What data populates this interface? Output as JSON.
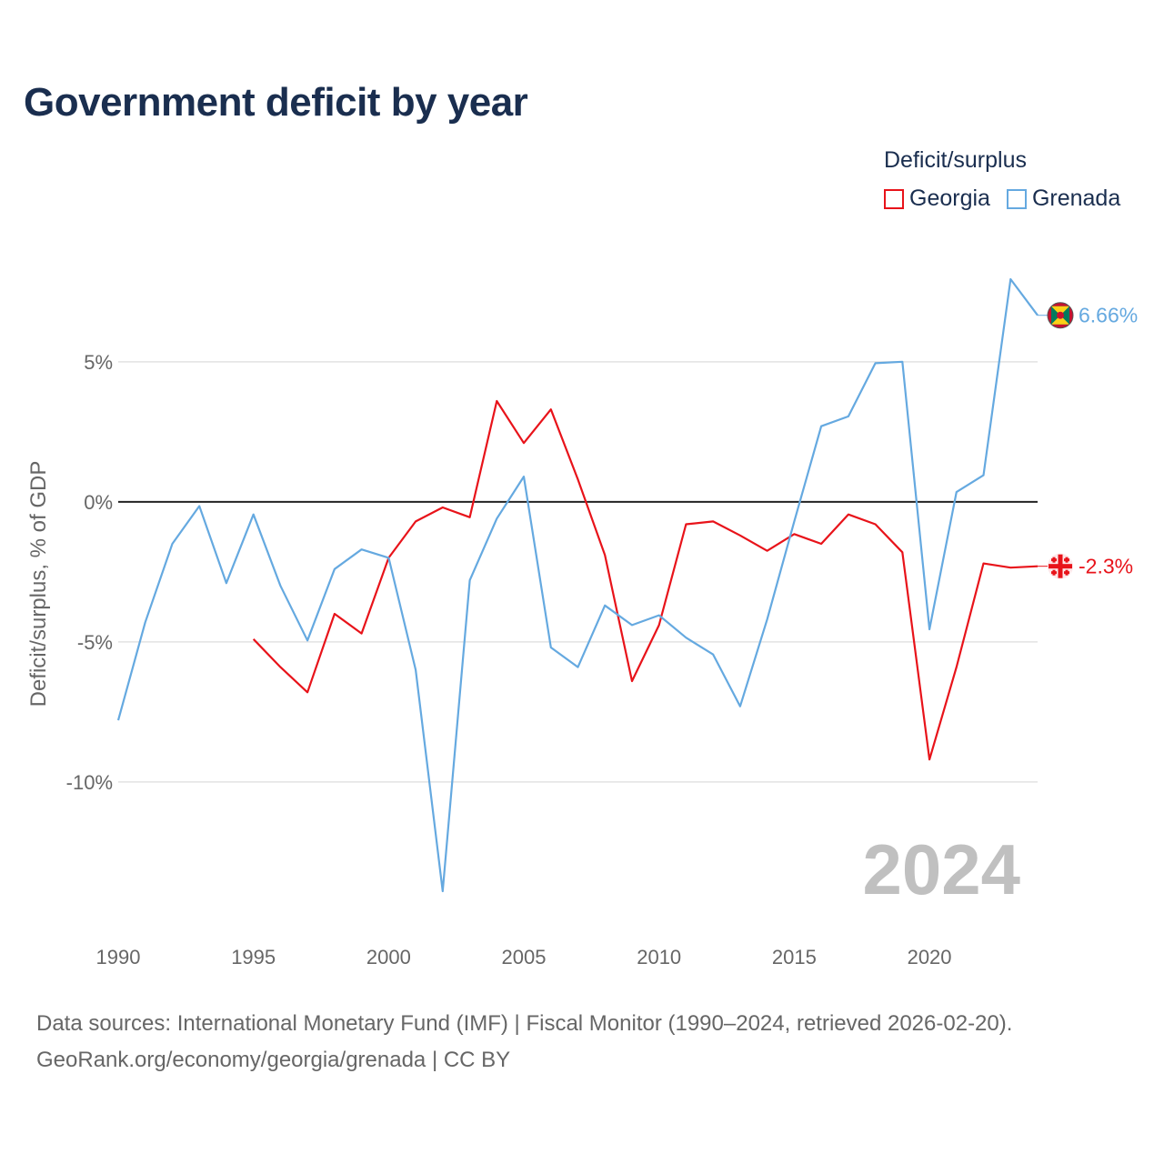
{
  "title": "Government deficit by year",
  "legend": {
    "title": "Deficit/surplus",
    "items": [
      {
        "name": "Georgia",
        "color": "#e8131a"
      },
      {
        "name": "Grenada",
        "color": "#65a9e0"
      }
    ]
  },
  "sources": {
    "line1": "Data sources: International Monetary Fund (IMF) | Fiscal Monitor (1990–2024, retrieved 2026-02-20).",
    "line2": "GeoRank.org/economy/georgia/grenada | CC BY"
  },
  "chart_data": {
    "type": "line",
    "ylabel": "Deficit/surplus, % of GDP",
    "xlim": [
      1990,
      2024
    ],
    "ylim": [
      -15.2,
      9.8
    ],
    "xticks": [
      1990,
      1995,
      2000,
      2005,
      2010,
      2015,
      2020
    ],
    "yticks": [
      5,
      0,
      -5,
      -10
    ],
    "ytick_labels": [
      "5%",
      "0%",
      "-5%",
      "-10%"
    ],
    "year_watermark": "2024",
    "series": [
      {
        "name": "Georgia",
        "color": "#e8131a",
        "end_label": "-2.3%",
        "x": [
          1995,
          1996,
          1997,
          1998,
          1999,
          2000,
          2001,
          2002,
          2003,
          2004,
          2005,
          2006,
          2007,
          2008,
          2009,
          2010,
          2011,
          2012,
          2013,
          2014,
          2015,
          2016,
          2017,
          2018,
          2019,
          2020,
          2021,
          2022,
          2023,
          2024
        ],
        "values": [
          -4.9,
          -5.9,
          -6.8,
          -4.0,
          -4.7,
          -2.0,
          -0.7,
          -0.2,
          -0.55,
          3.6,
          2.1,
          3.3,
          0.8,
          -1.9,
          -6.4,
          -4.4,
          -0.8,
          -0.7,
          -1.2,
          -1.75,
          -1.15,
          -1.5,
          -0.45,
          -0.8,
          -1.8,
          -9.2,
          -5.9,
          -2.2,
          -2.35,
          -2.3
        ]
      },
      {
        "name": "Grenada",
        "color": "#65a9e0",
        "end_label": "6.66%",
        "x": [
          1990,
          1991,
          1992,
          1993,
          1994,
          1995,
          1996,
          1997,
          1998,
          1999,
          2000,
          2001,
          2002,
          2003,
          2004,
          2005,
          2006,
          2007,
          2008,
          2009,
          2010,
          2011,
          2012,
          2013,
          2014,
          2015,
          2016,
          2017,
          2018,
          2019,
          2020,
          2021,
          2022,
          2023,
          2024
        ],
        "values": [
          -7.8,
          -4.3,
          -1.5,
          -0.15,
          -2.9,
          -0.45,
          -3.0,
          -4.95,
          -2.4,
          -1.7,
          -2.0,
          -6.0,
          -13.9,
          -2.8,
          -0.6,
          0.9,
          -5.2,
          -5.9,
          -3.7,
          -4.4,
          -4.05,
          -4.85,
          -5.45,
          -7.3,
          -4.2,
          -0.7,
          2.7,
          3.05,
          4.95,
          5.0,
          -4.55,
          0.35,
          0.95,
          7.95,
          6.66
        ]
      }
    ]
  }
}
